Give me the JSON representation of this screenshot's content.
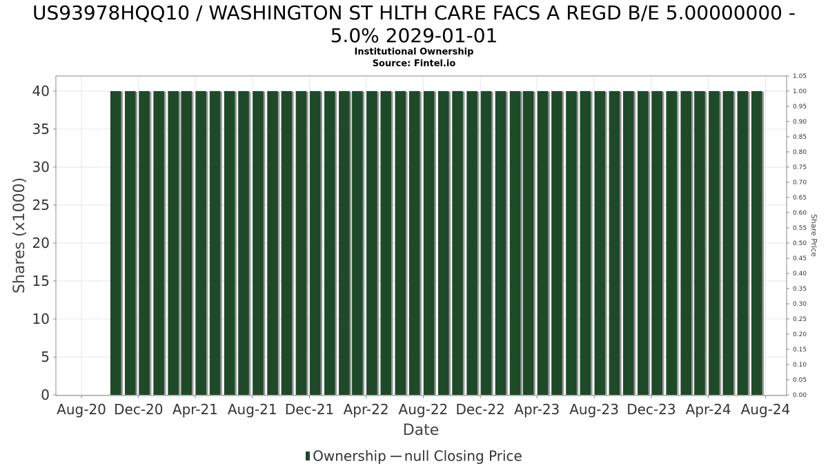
{
  "chart_data": {
    "type": "bar",
    "title": "US93978HQQ10 / WASHINGTON ST HLTH CARE FACS A REGD B/E 5.00000000 - 5.0% 2029-01-01",
    "title_lines": [
      "US93978HQQ10 / WASHINGTON ST HLTH CARE FACS A REGD B/E 5.00000000 -",
      "5.0% 2029-01-01"
    ],
    "subtitle_lines": [
      "Institutional Ownership",
      "Source: Fintel.io"
    ],
    "xlabel": "Date",
    "ylabel": "Shares (x1000)",
    "y2label": "Share Price",
    "x_ticks": [
      "Aug-20",
      "Dec-20",
      "Apr-21",
      "Aug-21",
      "Dec-21",
      "Apr-22",
      "Aug-22",
      "Dec-22",
      "Apr-23",
      "Aug-23",
      "Dec-23",
      "Apr-24",
      "Aug-24"
    ],
    "y_ticks": [
      "0",
      "5",
      "10",
      "15",
      "20",
      "25",
      "30",
      "35",
      "40"
    ],
    "y2_ticks": [
      "0.00",
      "0.05",
      "0.10",
      "0.15",
      "0.20",
      "0.25",
      "0.30",
      "0.35",
      "0.40",
      "0.45",
      "0.50",
      "0.55",
      "0.60",
      "0.65",
      "0.70",
      "0.75",
      "0.80",
      "0.85",
      "0.90",
      "0.95",
      "1.00",
      "1.05"
    ],
    "ylim": [
      0,
      42
    ],
    "y2lim": [
      0,
      1.05
    ],
    "xlim": [
      "2020-07-01",
      "2024-09-15"
    ],
    "bar_start": "2020-10-01",
    "bar_end": "2024-07-01",
    "bar_period": "month",
    "series": [
      {
        "name": "Ownership",
        "color": "#1f4a2a",
        "values": [
          40,
          40,
          40,
          40,
          40,
          40,
          40,
          40,
          40,
          40,
          40,
          40,
          40,
          40,
          40,
          40,
          40,
          40,
          40,
          40,
          40,
          40,
          40,
          40,
          40,
          40,
          40,
          40,
          40,
          40,
          40,
          40,
          40,
          40,
          40,
          40,
          40,
          40,
          40,
          40,
          40,
          40,
          40,
          40,
          40,
          40
        ]
      }
    ],
    "legend": {
      "placement": "bottom",
      "ownership_label": "Ownership",
      "closing_price_label": "null Closing Price"
    },
    "grid": true
  }
}
